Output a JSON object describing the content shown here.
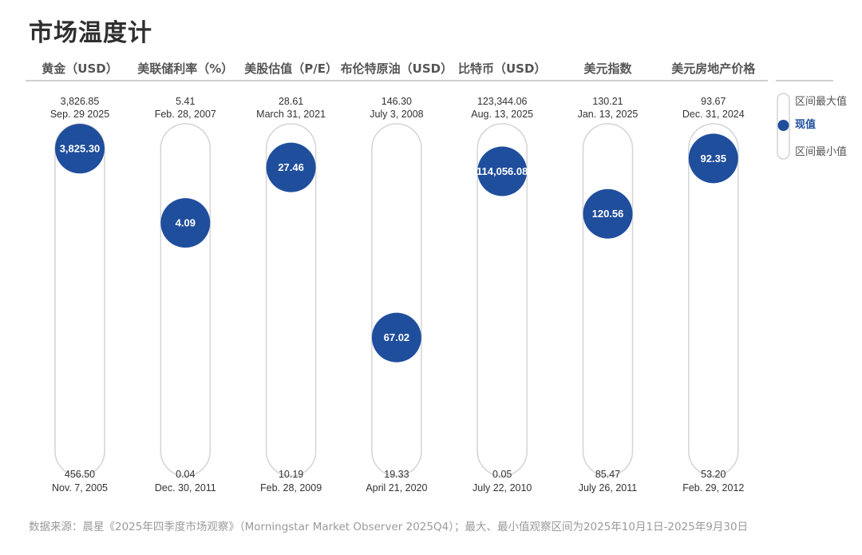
{
  "title": "市场温度计",
  "source": "数据来源：晨星《2025年四季度市场观察》（Morningstar Market Observer 2025Q4）；最大、最小值观察区间为2025年10月1日-2025年9月30日",
  "colors": {
    "accent": "#1f4e9c",
    "pill_stroke": "#d4d4d4",
    "header_line": "#bfbfbf",
    "title": "#2f2f2f",
    "source": "#9a9a9a"
  },
  "legend": {
    "max": "区间最大值",
    "current": "现值",
    "min": "区间最小值"
  },
  "chart_data": {
    "type": "range-thermometer",
    "title": "市场温度计",
    "series": [
      {
        "name": "黄金（USD）",
        "max": 3826.85,
        "max_label": "3,826.85",
        "max_date": "Sep. 29 2025",
        "current": 3825.3,
        "current_label": "3,825.30",
        "min": 456.5,
        "min_label": "456.50",
        "min_date": "Nov. 7, 2005"
      },
      {
        "name": "美联储利率（%）",
        "max": 5.41,
        "max_label": "5.41",
        "max_date": "Feb. 28, 2007",
        "current": 4.09,
        "current_label": "4.09",
        "min": 0.04,
        "min_label": "0.04",
        "min_date": "Dec. 30, 2011"
      },
      {
        "name": "美股估值（P/E）",
        "max": 28.61,
        "max_label": "28.61",
        "max_date": "March 31, 2021",
        "current": 27.46,
        "current_label": "27.46",
        "min": 10.19,
        "min_label": "10.19",
        "min_date": "Feb. 28, 2009"
      },
      {
        "name": "布伦特原油（USD）",
        "max": 146.3,
        "max_label": "146.30",
        "max_date": "July 3, 2008",
        "current": 67.02,
        "current_label": "67.02",
        "min": 19.33,
        "min_label": "19.33",
        "min_date": "April 21, 2020"
      },
      {
        "name": "比特币（USD）",
        "max": 123344.06,
        "max_label": "123,344.06",
        "max_date": "Aug. 13, 2025",
        "current": 114056.08,
        "current_label": "114,056.08",
        "min": 0.05,
        "min_label": "0.05",
        "min_date": "July 22, 2010"
      },
      {
        "name": "美元指数",
        "max": 130.21,
        "max_label": "130.21",
        "max_date": "Jan. 13, 2025",
        "current": 120.56,
        "current_label": "120.56",
        "min": 85.47,
        "min_label": "85.47",
        "min_date": "July 26, 2011"
      },
      {
        "name": "美元房地产价格",
        "max": 93.67,
        "max_label": "93.67",
        "max_date": "Dec. 31, 2024",
        "current": 92.35,
        "current_label": "92.35",
        "min": 53.2,
        "min_label": "53.20",
        "min_date": "Feb. 29, 2012"
      }
    ]
  }
}
